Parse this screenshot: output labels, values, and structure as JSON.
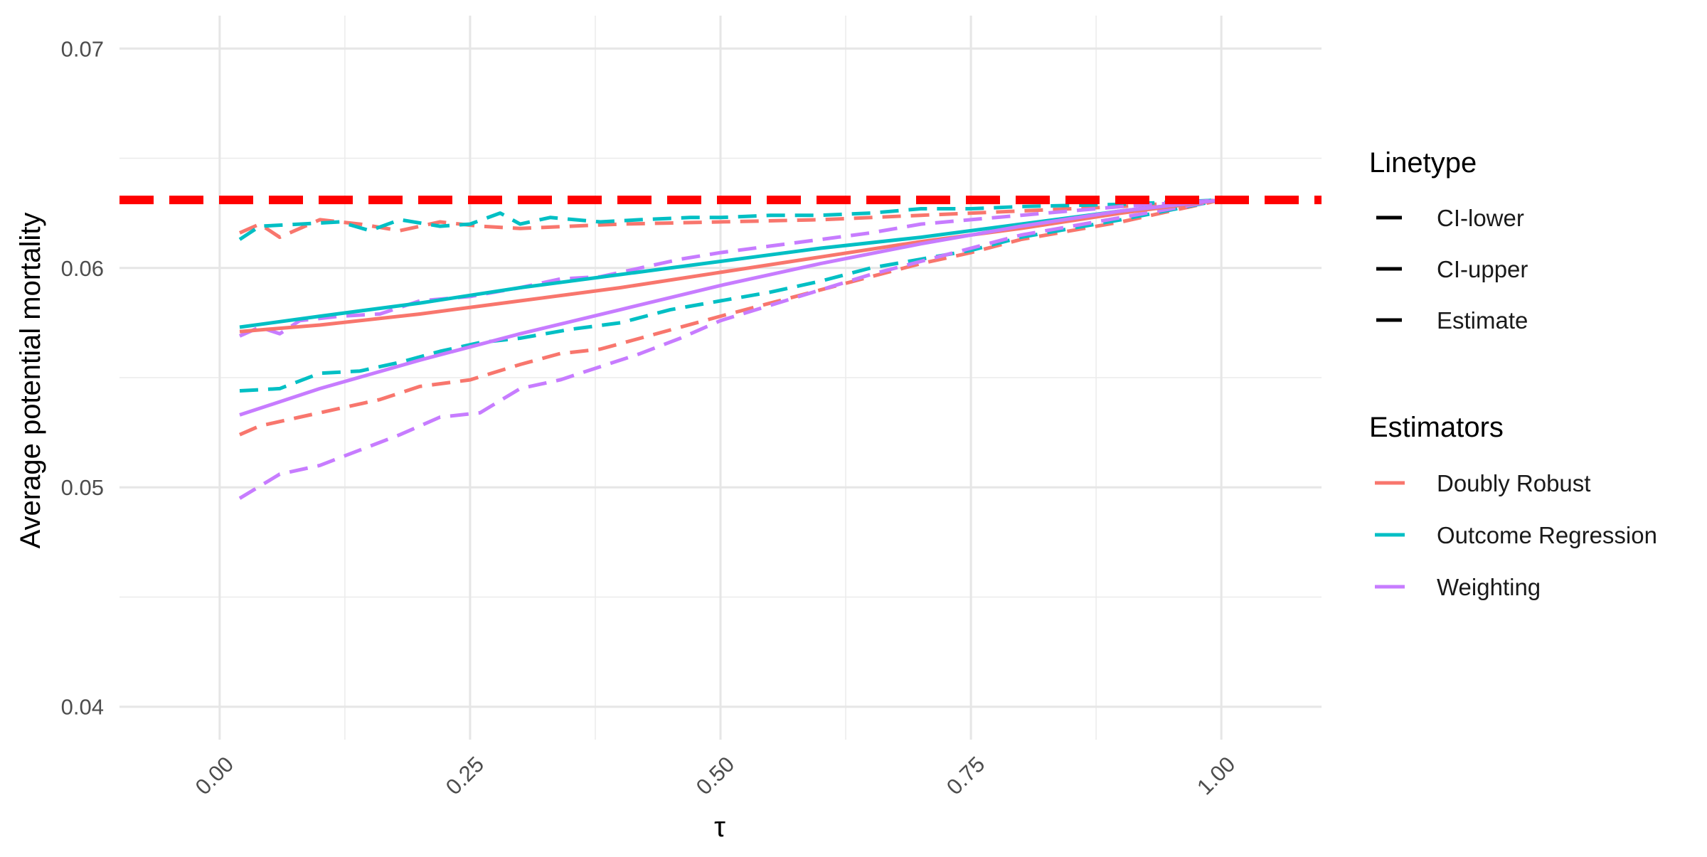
{
  "chart_data": {
    "type": "line",
    "title": "",
    "xlabel": "τ",
    "ylabel": "Average potential mortality",
    "xlim": [
      -0.1,
      1.1
    ],
    "ylim": [
      0.0385,
      0.0715
    ],
    "x_ticks": [
      0.0,
      0.25,
      0.5,
      0.75,
      1.0
    ],
    "x_tick_labels": [
      "0.00",
      "0.25",
      "0.50",
      "0.75",
      "1.00"
    ],
    "y_ticks": [
      0.04,
      0.05,
      0.06,
      0.07
    ],
    "y_tick_labels": [
      "0.04",
      "0.05",
      "0.06",
      "0.07"
    ],
    "grid": true,
    "legend_position": "right",
    "reference_line": {
      "y": 0.0631,
      "color": "#ff0000",
      "style": "dashed"
    },
    "legends": {
      "linetype": {
        "title": "Linetype",
        "entries": [
          "CI-lower",
          "CI-upper",
          "Estimate"
        ]
      },
      "estimators": {
        "title": "Estimators",
        "entries": [
          {
            "name": "Doubly Robust",
            "color": "#f8766d"
          },
          {
            "name": "Outcome Regression",
            "color": "#00bfc4"
          },
          {
            "name": "Weighting",
            "color": "#c77cff"
          }
        ]
      }
    },
    "series": [
      {
        "estimator": "Doubly Robust",
        "linetype": "Estimate",
        "color": "#f8766d",
        "points": [
          [
            0.02,
            0.0571
          ],
          [
            0.1,
            0.0574
          ],
          [
            0.2,
            0.0579
          ],
          [
            0.3,
            0.0585
          ],
          [
            0.4,
            0.0591
          ],
          [
            0.5,
            0.0598
          ],
          [
            0.6,
            0.0605
          ],
          [
            0.7,
            0.0612
          ],
          [
            0.8,
            0.0618
          ],
          [
            0.9,
            0.0625
          ],
          [
            1.0,
            0.0631
          ]
        ]
      },
      {
        "estimator": "Outcome Regression",
        "linetype": "Estimate",
        "color": "#00bfc4",
        "points": [
          [
            0.02,
            0.0573
          ],
          [
            0.1,
            0.0578
          ],
          [
            0.2,
            0.0584
          ],
          [
            0.3,
            0.0591
          ],
          [
            0.4,
            0.0597
          ],
          [
            0.5,
            0.0603
          ],
          [
            0.6,
            0.0609
          ],
          [
            0.7,
            0.0614
          ],
          [
            0.8,
            0.062
          ],
          [
            0.9,
            0.0626
          ],
          [
            1.0,
            0.0631
          ]
        ]
      },
      {
        "estimator": "Weighting",
        "linetype": "Estimate",
        "color": "#c77cff",
        "points": [
          [
            0.02,
            0.0533
          ],
          [
            0.1,
            0.0545
          ],
          [
            0.2,
            0.0558
          ],
          [
            0.3,
            0.057
          ],
          [
            0.4,
            0.0581
          ],
          [
            0.5,
            0.0592
          ],
          [
            0.6,
            0.0602
          ],
          [
            0.7,
            0.0611
          ],
          [
            0.8,
            0.0619
          ],
          [
            0.9,
            0.0626
          ],
          [
            1.0,
            0.0631
          ]
        ]
      },
      {
        "estimator": "Doubly Robust",
        "linetype": "CI-upper",
        "color": "#f8766d",
        "points": [
          [
            0.02,
            0.0616
          ],
          [
            0.04,
            0.062
          ],
          [
            0.06,
            0.0614
          ],
          [
            0.1,
            0.0622
          ],
          [
            0.14,
            0.062
          ],
          [
            0.18,
            0.0617
          ],
          [
            0.22,
            0.0621
          ],
          [
            0.26,
            0.0619
          ],
          [
            0.3,
            0.0618
          ],
          [
            0.35,
            0.0619
          ],
          [
            0.4,
            0.062
          ],
          [
            0.5,
            0.0621
          ],
          [
            0.6,
            0.0622
          ],
          [
            0.7,
            0.0624
          ],
          [
            0.8,
            0.0626
          ],
          [
            0.9,
            0.0628
          ],
          [
            1.0,
            0.0631
          ]
        ]
      },
      {
        "estimator": "Outcome Regression",
        "linetype": "CI-upper",
        "color": "#00bfc4",
        "points": [
          [
            0.02,
            0.0613
          ],
          [
            0.04,
            0.0619
          ],
          [
            0.08,
            0.062
          ],
          [
            0.12,
            0.0621
          ],
          [
            0.15,
            0.0617
          ],
          [
            0.18,
            0.0622
          ],
          [
            0.22,
            0.0619
          ],
          [
            0.25,
            0.062
          ],
          [
            0.28,
            0.0625
          ],
          [
            0.3,
            0.062
          ],
          [
            0.33,
            0.0623
          ],
          [
            0.38,
            0.0621
          ],
          [
            0.42,
            0.0622
          ],
          [
            0.47,
            0.0623
          ],
          [
            0.5,
            0.0623
          ],
          [
            0.55,
            0.0624
          ],
          [
            0.6,
            0.0624
          ],
          [
            0.65,
            0.0625
          ],
          [
            0.7,
            0.0627
          ],
          [
            0.75,
            0.0627
          ],
          [
            0.8,
            0.0628
          ],
          [
            0.9,
            0.0629
          ],
          [
            1.0,
            0.0631
          ]
        ]
      },
      {
        "estimator": "Weighting",
        "linetype": "CI-upper",
        "color": "#c77cff",
        "points": [
          [
            0.02,
            0.0569
          ],
          [
            0.04,
            0.0573
          ],
          [
            0.06,
            0.057
          ],
          [
            0.08,
            0.0576
          ],
          [
            0.12,
            0.0578
          ],
          [
            0.16,
            0.0579
          ],
          [
            0.2,
            0.0585
          ],
          [
            0.25,
            0.0587
          ],
          [
            0.3,
            0.0591
          ],
          [
            0.34,
            0.0595
          ],
          [
            0.38,
            0.0596
          ],
          [
            0.42,
            0.06
          ],
          [
            0.46,
            0.0604
          ],
          [
            0.5,
            0.0607
          ],
          [
            0.55,
            0.061
          ],
          [
            0.6,
            0.0613
          ],
          [
            0.65,
            0.0616
          ],
          [
            0.7,
            0.062
          ],
          [
            0.75,
            0.0622
          ],
          [
            0.8,
            0.0624
          ],
          [
            0.9,
            0.0628
          ],
          [
            1.0,
            0.0631
          ]
        ]
      },
      {
        "estimator": "Doubly Robust",
        "linetype": "CI-lower",
        "color": "#f8766d",
        "points": [
          [
            0.02,
            0.0524
          ],
          [
            0.04,
            0.0528
          ],
          [
            0.08,
            0.0532
          ],
          [
            0.12,
            0.0536
          ],
          [
            0.16,
            0.054
          ],
          [
            0.2,
            0.0546
          ],
          [
            0.25,
            0.0549
          ],
          [
            0.3,
            0.0556
          ],
          [
            0.34,
            0.0561
          ],
          [
            0.38,
            0.0563
          ],
          [
            0.42,
            0.0568
          ],
          [
            0.46,
            0.0573
          ],
          [
            0.5,
            0.0578
          ],
          [
            0.55,
            0.0584
          ],
          [
            0.6,
            0.059
          ],
          [
            0.65,
            0.0596
          ],
          [
            0.7,
            0.0602
          ],
          [
            0.75,
            0.0607
          ],
          [
            0.8,
            0.0613
          ],
          [
            0.9,
            0.0621
          ],
          [
            1.0,
            0.0631
          ]
        ]
      },
      {
        "estimator": "Outcome Regression",
        "linetype": "CI-lower",
        "color": "#00bfc4",
        "points": [
          [
            0.02,
            0.0544
          ],
          [
            0.06,
            0.0545
          ],
          [
            0.1,
            0.0552
          ],
          [
            0.14,
            0.0553
          ],
          [
            0.18,
            0.0557
          ],
          [
            0.22,
            0.0562
          ],
          [
            0.26,
            0.0566
          ],
          [
            0.3,
            0.0568
          ],
          [
            0.35,
            0.0572
          ],
          [
            0.4,
            0.0575
          ],
          [
            0.45,
            0.0581
          ],
          [
            0.5,
            0.0585
          ],
          [
            0.55,
            0.0589
          ],
          [
            0.6,
            0.0594
          ],
          [
            0.65,
            0.06
          ],
          [
            0.7,
            0.0604
          ],
          [
            0.75,
            0.0608
          ],
          [
            0.8,
            0.0614
          ],
          [
            0.9,
            0.0622
          ],
          [
            1.0,
            0.0631
          ]
        ]
      },
      {
        "estimator": "Weighting",
        "linetype": "CI-lower",
        "color": "#c77cff",
        "points": [
          [
            0.02,
            0.0495
          ],
          [
            0.06,
            0.0506
          ],
          [
            0.1,
            0.051
          ],
          [
            0.14,
            0.0517
          ],
          [
            0.18,
            0.0524
          ],
          [
            0.22,
            0.0532
          ],
          [
            0.26,
            0.0534
          ],
          [
            0.3,
            0.0545
          ],
          [
            0.34,
            0.0549
          ],
          [
            0.38,
            0.0555
          ],
          [
            0.42,
            0.0561
          ],
          [
            0.46,
            0.0568
          ],
          [
            0.5,
            0.0576
          ],
          [
            0.55,
            0.0583
          ],
          [
            0.6,
            0.059
          ],
          [
            0.65,
            0.0597
          ],
          [
            0.7,
            0.0603
          ],
          [
            0.75,
            0.0609
          ],
          [
            0.8,
            0.0615
          ],
          [
            0.9,
            0.0623
          ],
          [
            1.0,
            0.0631
          ]
        ]
      }
    ]
  }
}
